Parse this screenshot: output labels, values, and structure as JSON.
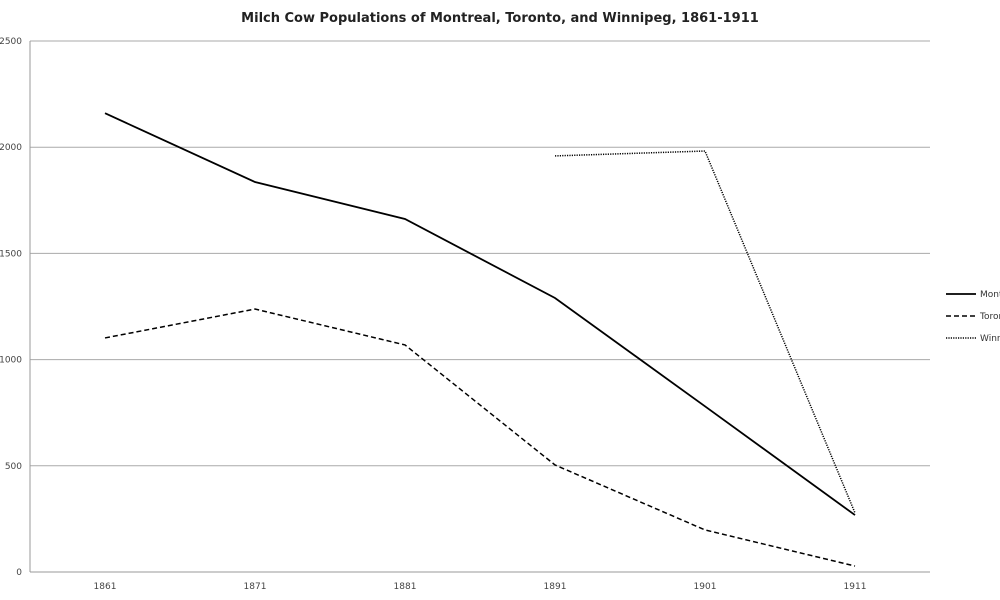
{
  "chart_data": {
    "type": "line",
    "title": "Milch Cow Populations of Montreal, Toronto, and Winnipeg, 1861-1911",
    "categories": [
      "1861",
      "1871",
      "1881",
      "1891",
      "1901",
      "1911"
    ],
    "ylim": [
      0,
      2500
    ],
    "yticks": [
      "0",
      "500",
      "1000",
      "1500",
      "2000",
      "2500"
    ],
    "grid": true,
    "legend_position": "right",
    "series": [
      {
        "name": "Montreal",
        "style": "solid",
        "color": "#000000",
        "values": [
          2160,
          1836,
          1662,
          1290,
          780,
          268
        ]
      },
      {
        "name": "Toronto",
        "style": "dashed",
        "color": "#000000",
        "values": [
          1102,
          1238,
          1069,
          504,
          198,
          28
        ]
      },
      {
        "name": "Winnipeg",
        "style": "dotted",
        "color": "#000000",
        "values": [
          null,
          null,
          null,
          1959,
          1982,
          278
        ]
      }
    ]
  }
}
